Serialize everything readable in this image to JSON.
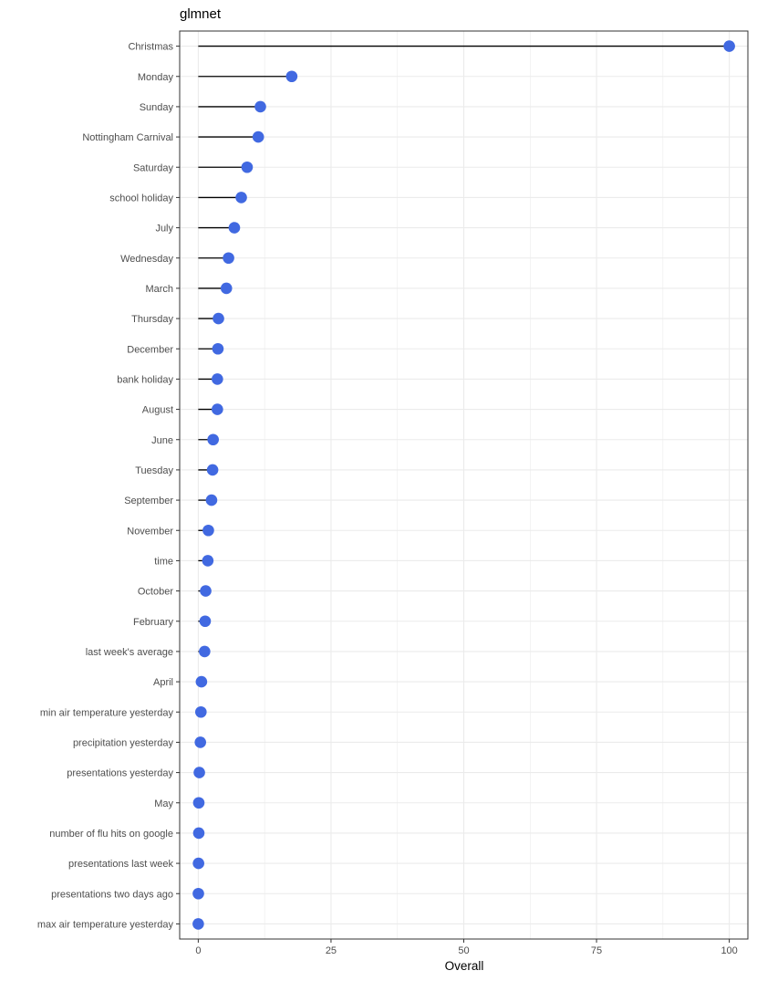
{
  "chart_data": {
    "type": "lollipop",
    "title": "glmnet",
    "xlabel": "Overall",
    "ylabel": "",
    "xlim": [
      -3.5,
      103.5
    ],
    "x_ticks": [
      0,
      25,
      50,
      75,
      100
    ],
    "x_tick_labels": [
      "0",
      "25",
      "50",
      "75",
      "100"
    ],
    "grid": true,
    "legend": "none",
    "categories": [
      "Christmas",
      "Monday",
      "Sunday",
      "Nottingham Carnival",
      "Saturday",
      "school holiday",
      "July",
      "Wednesday",
      "March",
      "Thursday",
      "December",
      "bank holiday",
      "August",
      "June",
      "Tuesday",
      "September",
      "November",
      "time",
      "October",
      "February",
      "last week's average",
      "April",
      "min air temperature yesterday",
      "precipitation yesterday",
      "presentations yesterday",
      "May",
      "number of flu hits on google",
      "presentations last week",
      "presentations two days ago",
      "max air temperature yesterday"
    ],
    "values": [
      100,
      17.6,
      11.7,
      11.3,
      9.2,
      8.1,
      6.8,
      5.7,
      5.3,
      3.8,
      3.7,
      3.6,
      3.6,
      2.8,
      2.7,
      2.5,
      1.9,
      1.8,
      1.4,
      1.3,
      1.2,
      0.6,
      0.5,
      0.4,
      0.2,
      0.1,
      0.1,
      0.05,
      0.02,
      0.0
    ]
  },
  "colors": {
    "point": "#4169e1",
    "stem": "#000000",
    "grid": "#ebebeb",
    "panel_border": "#333333"
  }
}
